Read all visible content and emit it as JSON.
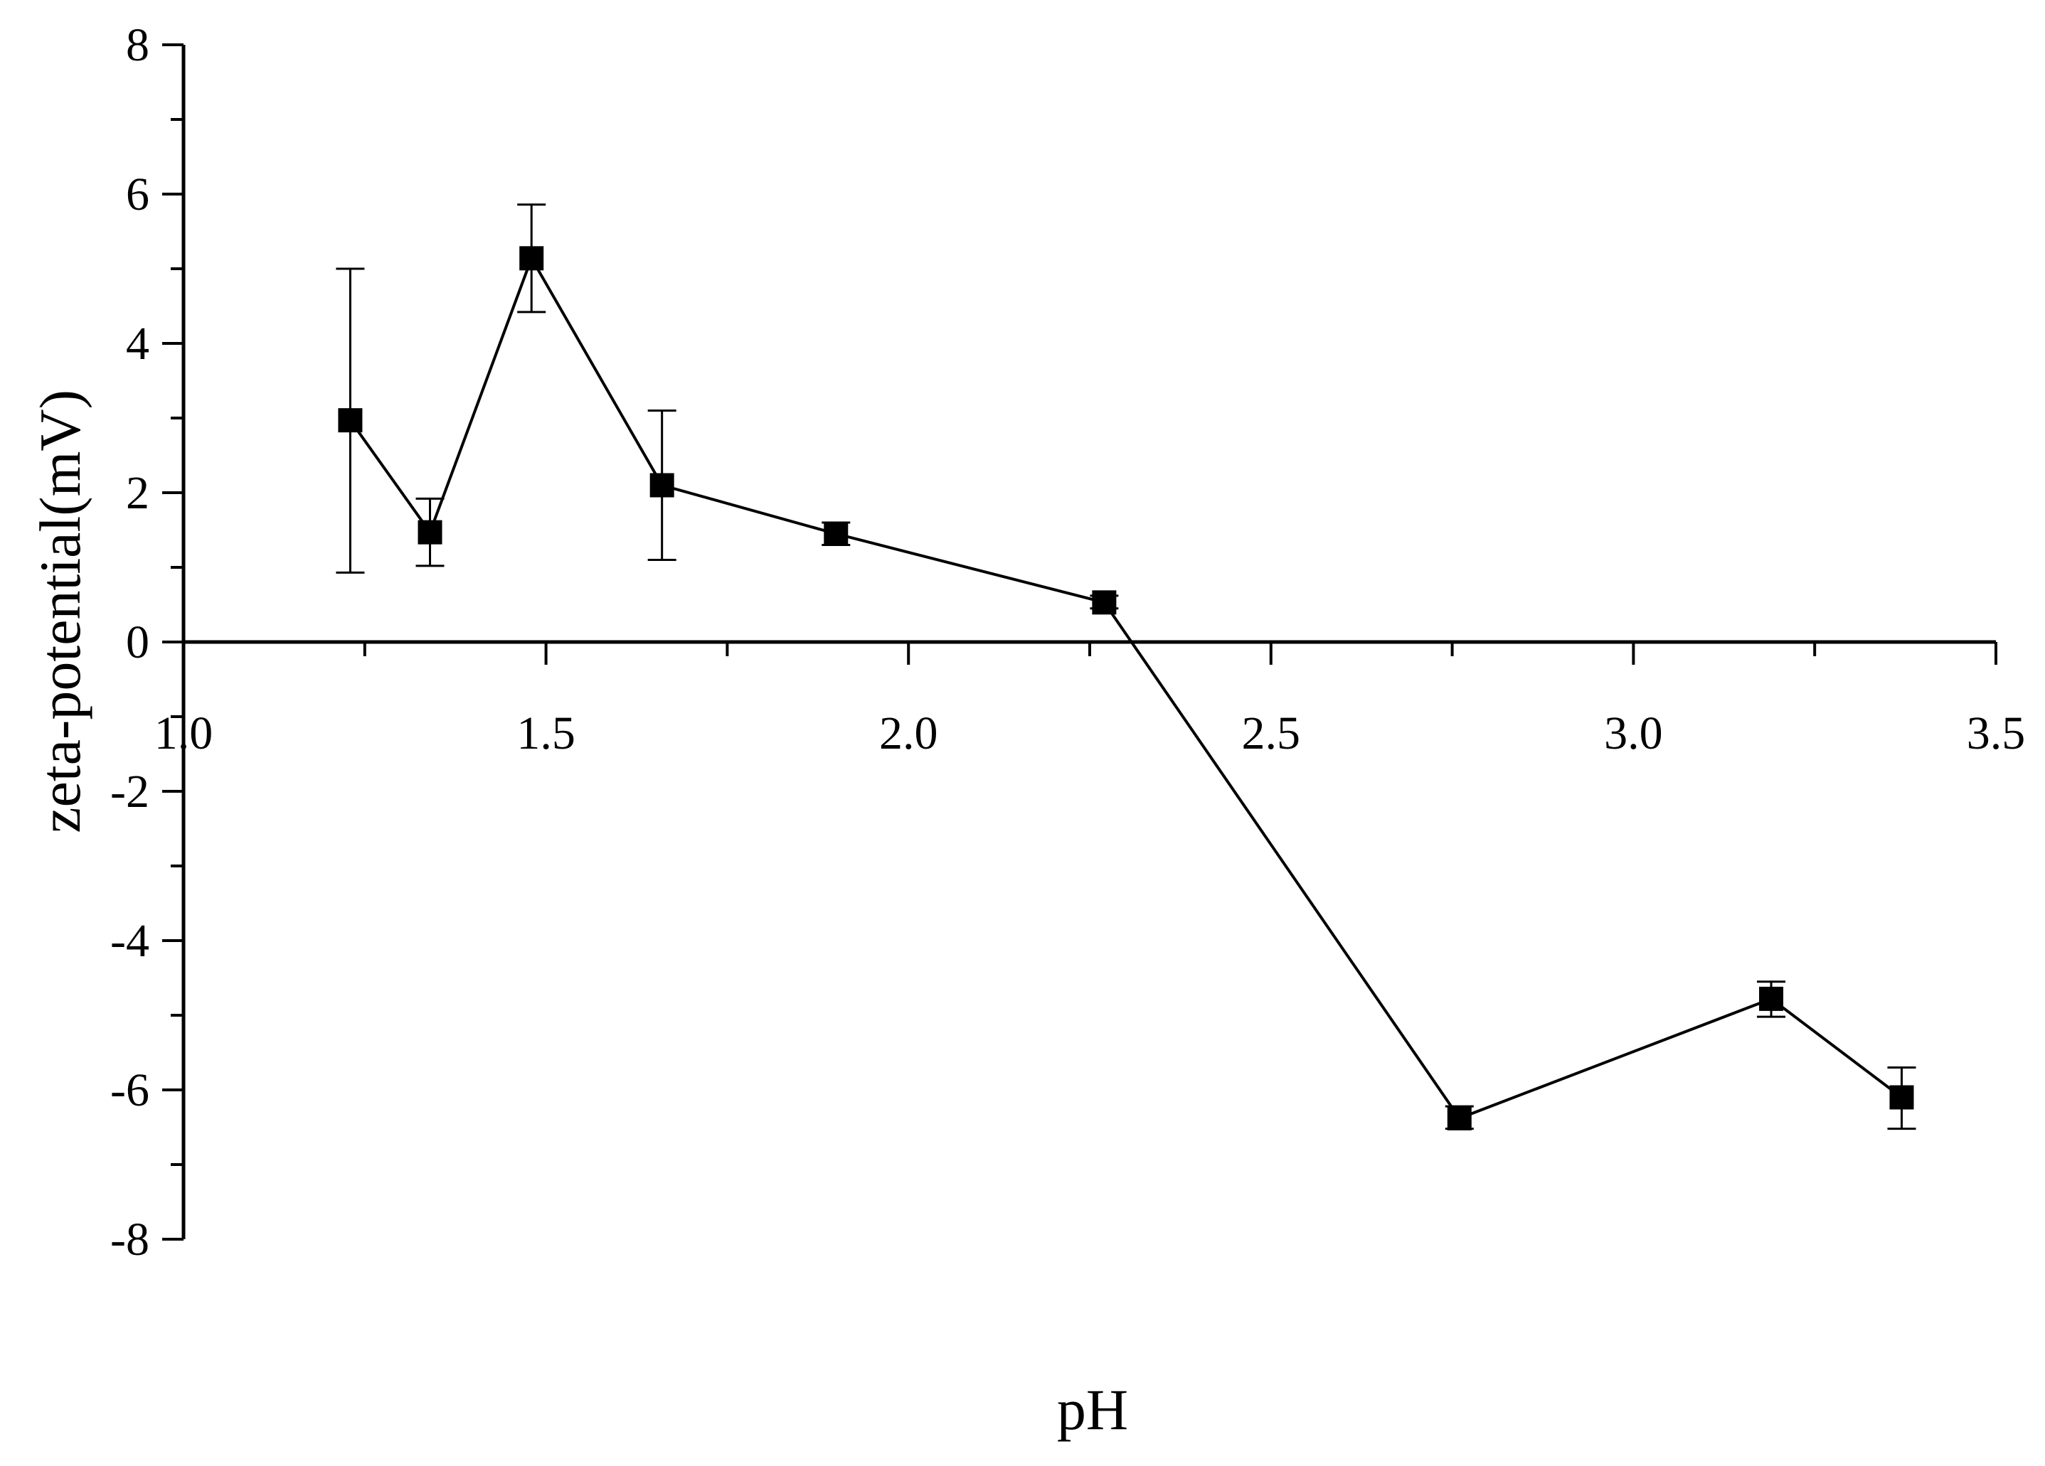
{
  "chart_data": {
    "type": "line",
    "title": "",
    "xlabel": "pH",
    "ylabel": "zeta-potential(mV)",
    "xlim": [
      1.0,
      3.5
    ],
    "ylim": [
      -8,
      8
    ],
    "x_ticks": [
      "1.0",
      "1.5",
      "2.0",
      "2.5",
      "3.0",
      "3.5"
    ],
    "y_ticks": [
      "-8",
      "-6",
      "-4",
      "-2",
      "0",
      "2",
      "4",
      "6",
      "8"
    ],
    "grid": false,
    "legend": "none",
    "marker": "square",
    "color": "#000000",
    "series": [
      {
        "x": [
          1.23,
          1.34,
          1.48,
          1.66,
          1.9,
          2.27,
          2.76,
          3.19,
          3.37
        ],
        "y": [
          2.97,
          1.47,
          5.14,
          2.1,
          1.45,
          0.53,
          -6.38,
          -4.78,
          -6.1
        ],
        "error_low": [
          0.93,
          1.02,
          4.42,
          1.1,
          1.3,
          0.45,
          -6.52,
          -5.02,
          -6.52
        ],
        "error_high": [
          5.0,
          1.92,
          5.86,
          3.1,
          1.6,
          0.62,
          -6.22,
          -4.55,
          -5.7
        ]
      }
    ]
  }
}
